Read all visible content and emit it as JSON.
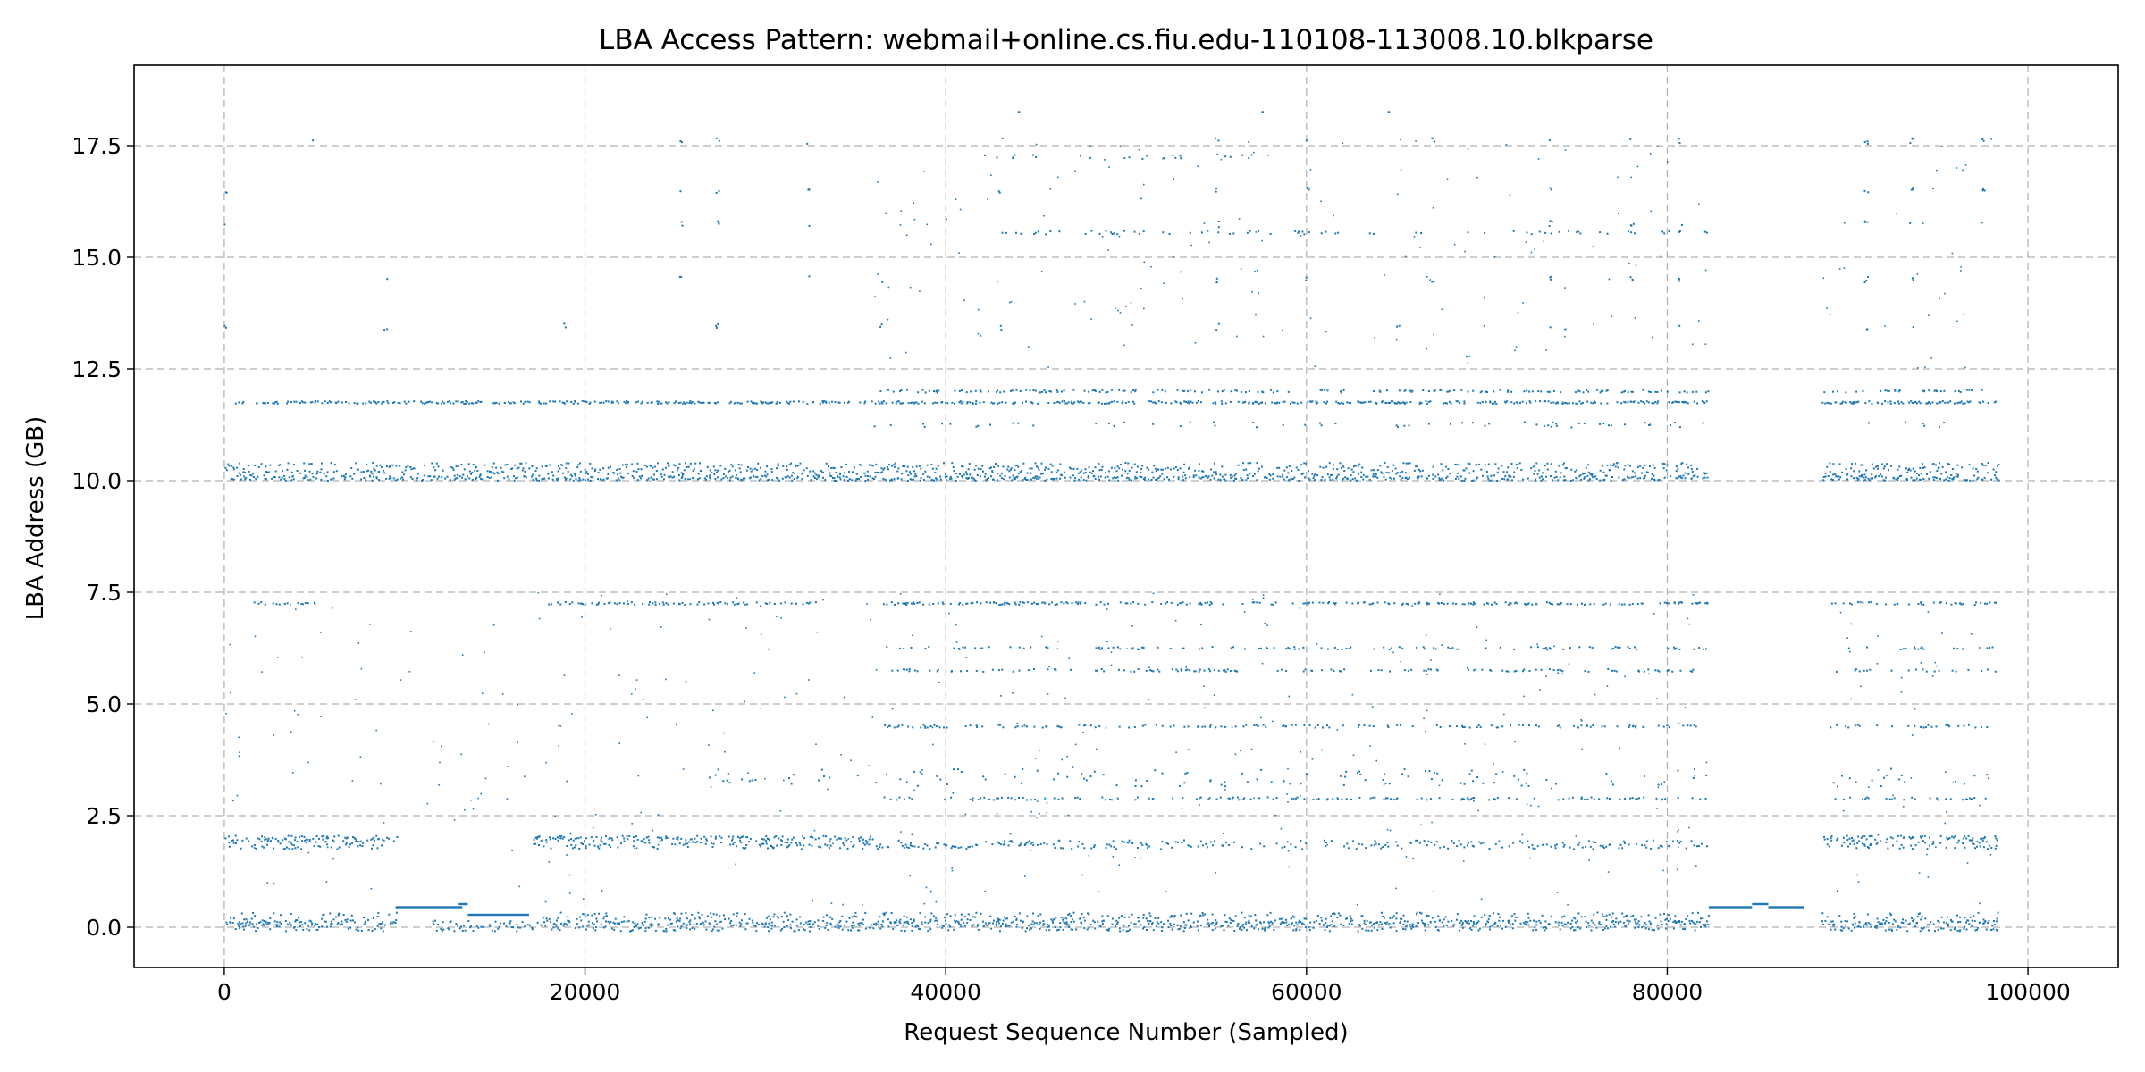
{
  "chart_data": {
    "type": "scatter",
    "title": "LBA Access Pattern: webmail+online.cs.fiu.edu-110108-113008.10.blkparse",
    "xlabel": "Request Sequence Number (Sampled)",
    "ylabel": "LBA Address (GB)",
    "xlim": [
      -5000,
      105000
    ],
    "ylim": [
      -0.9,
      19.3
    ],
    "xticks": [
      0,
      20000,
      40000,
      60000,
      80000,
      100000
    ],
    "yticks": [
      0.0,
      2.5,
      5.0,
      7.5,
      10.0,
      12.5,
      15.0,
      17.5
    ],
    "xtick_labels": [
      "0",
      "20000",
      "40000",
      "60000",
      "80000",
      "100000"
    ],
    "ytick_labels": [
      "0.0",
      "2.5",
      "5.0",
      "7.5",
      "10.0",
      "12.5",
      "15.0",
      "17.5"
    ],
    "grid": true,
    "grid_style": "dashed",
    "marker_color": "#1f77b4",
    "bands": [
      {
        "y": 0.03,
        "y_spread": 0.12,
        "segments": [
          [
            0,
            9500
          ],
          [
            11500,
            82300
          ],
          [
            88500,
            98300
          ]
        ],
        "density": 0.55
      },
      {
        "y": 0.18,
        "y_spread": 0.15,
        "segments": [
          [
            0,
            9500
          ],
          [
            17000,
            82300
          ],
          [
            88500,
            98300
          ]
        ],
        "density": 0.45
      },
      {
        "y": 0.45,
        "y_spread": 0.02,
        "segments": [
          [
            9500,
            13200
          ],
          [
            82300,
            84700
          ],
          [
            85600,
            87600
          ]
        ],
        "density": 1.0
      },
      {
        "y": 0.52,
        "y_spread": 0.02,
        "segments": [
          [
            13000,
            13500
          ],
          [
            84700,
            85600
          ]
        ],
        "density": 1.0
      },
      {
        "y": 0.28,
        "y_spread": 0.02,
        "segments": [
          [
            13500,
            16900
          ]
        ],
        "density": 1.0
      },
      {
        "y": 1.85,
        "y_spread": 0.1,
        "segments": [
          [
            0,
            9500
          ],
          [
            17000,
            82300
          ],
          [
            88500,
            98300
          ]
        ],
        "density": 0.35
      },
      {
        "y": 2.0,
        "y_spread": 0.05,
        "segments": [
          [
            0,
            9500
          ],
          [
            17000,
            36000
          ],
          [
            88500,
            98300
          ]
        ],
        "density": 0.35
      },
      {
        "y": 2.88,
        "y_spread": 0.03,
        "segments": [
          [
            36500,
            82300
          ],
          [
            89000,
            98300
          ]
        ],
        "density": 0.2
      },
      {
        "y": 3.35,
        "y_spread": 0.2,
        "segments": [
          [
            26000,
            82300
          ],
          [
            89000,
            98300
          ]
        ],
        "density": 0.12
      },
      {
        "y": 4.5,
        "y_spread": 0.03,
        "segments": [
          [
            36500,
            82300
          ],
          [
            89000,
            98300
          ]
        ],
        "density": 0.2
      },
      {
        "y": 5.75,
        "y_spread": 0.03,
        "segments": [
          [
            36500,
            82300
          ],
          [
            89000,
            98300
          ]
        ],
        "density": 0.15
      },
      {
        "y": 6.25,
        "y_spread": 0.03,
        "segments": [
          [
            36500,
            82300
          ],
          [
            89000,
            98300
          ]
        ],
        "density": 0.15
      },
      {
        "y": 7.25,
        "y_spread": 0.03,
        "segments": [
          [
            1500,
            5000
          ],
          [
            17800,
            33000
          ],
          [
            36500,
            82300
          ],
          [
            89000,
            98300
          ]
        ],
        "density": 0.25
      },
      {
        "y": 10.05,
        "y_spread": 0.05,
        "segments": [
          [
            0,
            82300
          ],
          [
            88500,
            98300
          ]
        ],
        "density": 0.45
      },
      {
        "y": 10.25,
        "y_spread": 0.15,
        "segments": [
          [
            0,
            82300
          ],
          [
            88500,
            98300
          ]
        ],
        "density": 0.55
      },
      {
        "y": 11.75,
        "y_spread": 0.03,
        "segments": [
          [
            500,
            36000
          ],
          [
            36000,
            82300
          ],
          [
            88500,
            98300
          ]
        ],
        "density": 0.4
      },
      {
        "y": 12.0,
        "y_spread": 0.03,
        "segments": [
          [
            36000,
            82300
          ],
          [
            88500,
            98300
          ]
        ],
        "density": 0.2
      },
      {
        "y": 11.25,
        "y_spread": 0.06,
        "segments": [
          [
            36000,
            82300
          ],
          [
            89000,
            98300
          ]
        ],
        "density": 0.08
      },
      {
        "y": 15.55,
        "y_spread": 0.04,
        "segments": [
          [
            43000,
            82300
          ]
        ],
        "density": 0.1
      },
      {
        "y": 17.25,
        "y_spread": 0.05,
        "segments": [
          [
            42000,
            60000
          ]
        ],
        "density": 0.05
      }
    ],
    "sparse_levels": [
      13.45,
      14.5,
      15.75,
      16.5,
      17.6
    ],
    "sparse_columns": [
      0,
      4800,
      8900,
      18800,
      25300,
      27300,
      32300,
      36400,
      43000,
      55000,
      60000,
      65000,
      67000,
      73500,
      78000,
      80700,
      91000,
      93500,
      97500
    ],
    "top_outliers": [
      [
        44000,
        18.25
      ],
      [
        57500,
        18.25
      ],
      [
        64500,
        18.25
      ]
    ]
  }
}
